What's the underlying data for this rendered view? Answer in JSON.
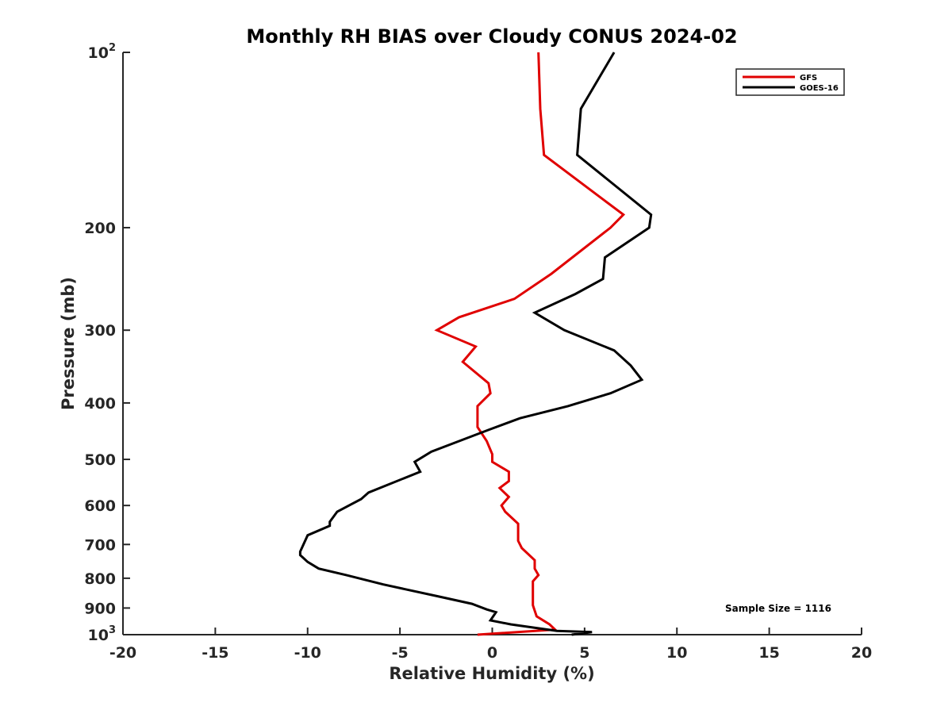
{
  "chart_data": {
    "type": "line",
    "title": "Monthly RH BIAS over Cloudy CONUS  2024-02",
    "xlabel": "Relative Humidity (%)",
    "ylabel": "Pressure (mb)",
    "xlim": [
      -20,
      20
    ],
    "ylim": [
      100,
      1000
    ],
    "y_scale": "log",
    "y_reversed": true,
    "x_ticks": [
      "-20",
      "-15",
      "-10",
      "-5",
      "0",
      "5",
      "10",
      "15",
      "20"
    ],
    "y_ticks": [
      {
        "value": 100,
        "base": "10",
        "exp": "2"
      },
      {
        "value": 200,
        "label": "200"
      },
      {
        "value": 300,
        "label": "300"
      },
      {
        "value": 400,
        "label": "400"
      },
      {
        "value": 500,
        "label": "500"
      },
      {
        "value": 600,
        "label": "600"
      },
      {
        "value": 700,
        "label": "700"
      },
      {
        "value": 800,
        "label": "800"
      },
      {
        "value": 900,
        "label": "900"
      },
      {
        "value": 1000,
        "base": "10",
        "exp": "3"
      }
    ],
    "grid": false,
    "legend_position": "top-right",
    "annotation": "Sample Size = 1116",
    "series": [
      {
        "name": "GFS",
        "color": "#e00000",
        "points": [
          [
            2.5,
            100
          ],
          [
            2.6,
            125
          ],
          [
            2.8,
            150
          ],
          [
            7.1,
            190
          ],
          [
            6.4,
            200
          ],
          [
            3.2,
            240
          ],
          [
            1.2,
            265
          ],
          [
            -1.8,
            285
          ],
          [
            -3.0,
            300
          ],
          [
            -0.9,
            320
          ],
          [
            -1.6,
            340
          ],
          [
            -0.2,
            370
          ],
          [
            -0.1,
            385
          ],
          [
            -0.8,
            405
          ],
          [
            -0.8,
            440
          ],
          [
            -0.3,
            465
          ],
          [
            0.0,
            490
          ],
          [
            0.0,
            505
          ],
          [
            0.9,
            525
          ],
          [
            0.9,
            545
          ],
          [
            0.4,
            560
          ],
          [
            0.9,
            580
          ],
          [
            0.5,
            600
          ],
          [
            0.7,
            615
          ],
          [
            1.4,
            645
          ],
          [
            1.4,
            670
          ],
          [
            1.4,
            690
          ],
          [
            1.6,
            710
          ],
          [
            2.3,
            745
          ],
          [
            2.3,
            770
          ],
          [
            2.5,
            790
          ],
          [
            2.2,
            810
          ],
          [
            2.2,
            850
          ],
          [
            2.2,
            890
          ],
          [
            2.4,
            930
          ],
          [
            3.1,
            960
          ],
          [
            3.4,
            980
          ],
          [
            -0.8,
            1000
          ]
        ]
      },
      {
        "name": "GOES-16",
        "color": "#000000",
        "points": [
          [
            6.6,
            100
          ],
          [
            4.8,
            125
          ],
          [
            4.6,
            150
          ],
          [
            8.6,
            190
          ],
          [
            8.5,
            200
          ],
          [
            6.1,
            225
          ],
          [
            6.0,
            245
          ],
          [
            4.5,
            260
          ],
          [
            2.3,
            280
          ],
          [
            3.9,
            300
          ],
          [
            6.6,
            325
          ],
          [
            7.5,
            345
          ],
          [
            8.1,
            365
          ],
          [
            6.4,
            385
          ],
          [
            4.1,
            405
          ],
          [
            1.5,
            425
          ],
          [
            -0.2,
            445
          ],
          [
            -1.4,
            460
          ],
          [
            -3.3,
            485
          ],
          [
            -4.2,
            505
          ],
          [
            -3.9,
            525
          ],
          [
            -6.7,
            570
          ],
          [
            -7.1,
            585
          ],
          [
            -8.4,
            615
          ],
          [
            -8.8,
            640
          ],
          [
            -8.8,
            650
          ],
          [
            -10.0,
            675
          ],
          [
            -10.4,
            720
          ],
          [
            -10.4,
            730
          ],
          [
            -10.0,
            750
          ],
          [
            -9.4,
            770
          ],
          [
            -7.9,
            790
          ],
          [
            -5.9,
            820
          ],
          [
            -2.9,
            860
          ],
          [
            -1.1,
            885
          ],
          [
            -0.3,
            905
          ],
          [
            0.2,
            915
          ],
          [
            0.0,
            935
          ],
          [
            -0.1,
            945
          ],
          [
            1.0,
            960
          ],
          [
            3.5,
            985
          ],
          [
            5.4,
            990
          ],
          [
            4.3,
            1000
          ]
        ]
      }
    ]
  }
}
